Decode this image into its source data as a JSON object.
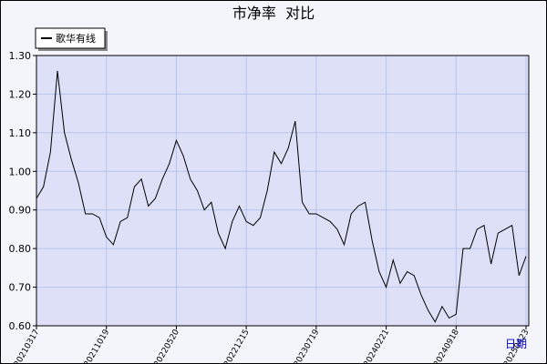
{
  "chart_data": {
    "type": "line",
    "title": "市净率  对比",
    "x_label": "日期",
    "categories": [
      "20210317",
      null,
      null,
      null,
      null,
      null,
      null,
      null,
      null,
      null,
      "20211019",
      null,
      null,
      null,
      null,
      null,
      null,
      null,
      null,
      null,
      "20220520",
      null,
      null,
      null,
      null,
      null,
      null,
      null,
      null,
      null,
      "20221215",
      null,
      null,
      null,
      null,
      null,
      null,
      null,
      null,
      null,
      "20230719",
      null,
      null,
      null,
      null,
      null,
      null,
      null,
      null,
      null,
      "20240221",
      null,
      null,
      null,
      null,
      null,
      null,
      null,
      null,
      null,
      "20240918",
      null,
      null,
      null,
      null,
      null,
      null,
      null,
      null,
      null,
      "20250423"
    ],
    "series": [
      {
        "name": "歌华有线",
        "color": "#000000",
        "values": [
          0.93,
          0.96,
          1.05,
          1.26,
          1.1,
          1.03,
          0.97,
          0.89,
          0.89,
          0.88,
          0.83,
          0.81,
          0.87,
          0.88,
          0.96,
          0.98,
          0.91,
          0.93,
          0.98,
          1.02,
          1.08,
          1.04,
          0.98,
          0.95,
          0.9,
          0.92,
          0.84,
          0.8,
          0.87,
          0.91,
          0.87,
          0.86,
          0.88,
          0.95,
          1.05,
          1.02,
          1.06,
          1.13,
          0.92,
          0.89,
          0.89,
          0.88,
          0.87,
          0.85,
          0.81,
          0.89,
          0.91,
          0.92,
          0.82,
          0.74,
          0.7,
          0.77,
          0.71,
          0.74,
          0.73,
          0.68,
          0.64,
          0.61,
          0.65,
          0.62,
          0.63,
          0.8,
          0.8,
          0.85,
          0.86,
          0.76,
          0.84,
          0.85,
          0.86,
          0.73,
          0.78
        ]
      }
    ],
    "ylim": [
      0.6,
      1.3
    ],
    "yticks": [
      {
        "value": 0.6,
        "label": "0.60"
      },
      {
        "value": 0.7,
        "label": "0.70"
      },
      {
        "value": 0.8,
        "label": "0.80"
      },
      {
        "value": 0.9,
        "label": "0.90"
      },
      {
        "value": 1.0,
        "label": "1.00"
      },
      {
        "value": 1.1,
        "label": "1.10"
      },
      {
        "value": 1.2,
        "label": "1.20"
      },
      {
        "value": 1.3,
        "label": "1.30"
      }
    ],
    "grid": true,
    "legend": "top-left"
  }
}
